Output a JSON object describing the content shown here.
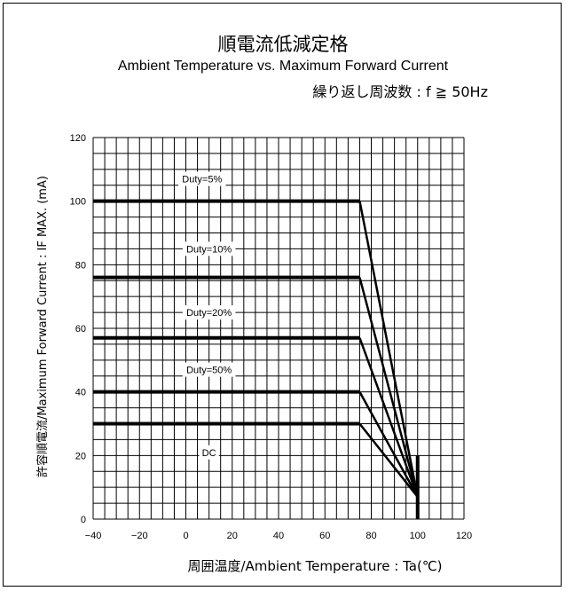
{
  "chart_data": {
    "type": "line",
    "title": "順電流低減定格",
    "subtitle": "Ambient Temperature vs. Maximum Forward Current",
    "condition": "繰り返し周波数 : f ≧ 50Hz",
    "xlabel": "周囲温度/Ambient Temperature : Ta(℃)",
    "ylabel": "許容順電流/Maximum Forward Current : IF MAX. (mA)",
    "xlim": [
      -40,
      120
    ],
    "ylim": [
      0,
      120
    ],
    "x_ticks": [
      "-40",
      "-20",
      "0",
      "20",
      "40",
      "60",
      "80",
      "100",
      "120"
    ],
    "y_ticks": [
      "0",
      "20",
      "40",
      "60",
      "80",
      "100",
      "120"
    ],
    "grid": true,
    "series": [
      {
        "name": "Duty=5%",
        "x": [
          -40,
          75,
          100
        ],
        "y": [
          100,
          100,
          7
        ]
      },
      {
        "name": "Duty=10%",
        "x": [
          -40,
          75,
          100
        ],
        "y": [
          76,
          76,
          7
        ]
      },
      {
        "name": "Duty=20%",
        "x": [
          -40,
          75,
          100
        ],
        "y": [
          57,
          57,
          7
        ]
      },
      {
        "name": "Duty=50%",
        "x": [
          -40,
          75,
          100
        ],
        "y": [
          40,
          40,
          7
        ]
      },
      {
        "name": "DC",
        "x": [
          -40,
          75,
          100
        ],
        "y": [
          30,
          30,
          7
        ]
      }
    ],
    "terminal_line": {
      "x": [
        100,
        100
      ],
      "y": [
        0,
        20
      ]
    },
    "annotations": [
      {
        "text": "Duty=5%",
        "x": 7,
        "y": 107
      },
      {
        "text": "Duty=10%",
        "x": 10,
        "y": 85
      },
      {
        "text": "Duty=20%",
        "x": 10,
        "y": 65
      },
      {
        "text": "Duty=50%",
        "x": 10,
        "y": 47
      },
      {
        "text": "DC",
        "x": 10,
        "y": 21
      }
    ]
  }
}
